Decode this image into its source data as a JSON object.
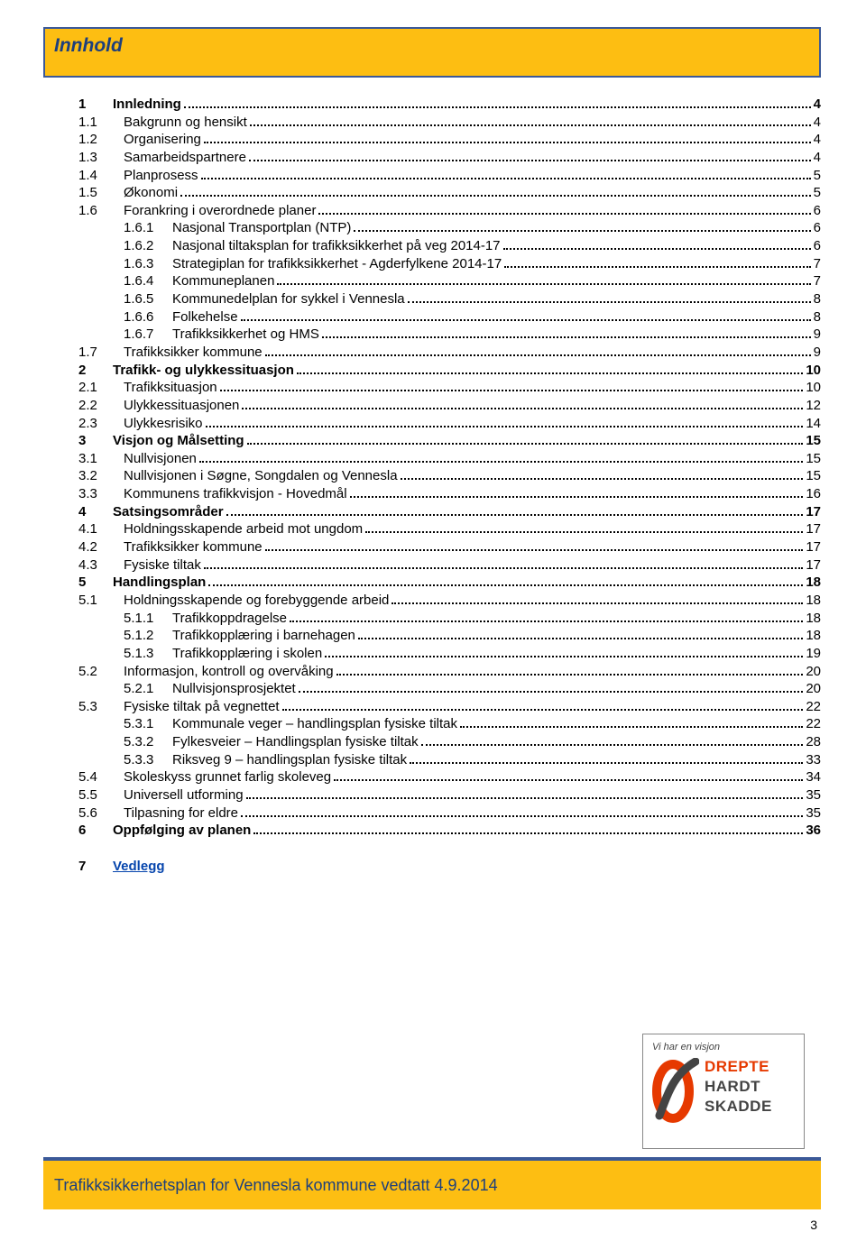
{
  "title": "Innhold",
  "toc": [
    {
      "lvl": 1,
      "num": "1",
      "label": "Innledning",
      "page": "4",
      "bold": true
    },
    {
      "lvl": 2,
      "num": "1.1",
      "label": "Bakgrunn og hensikt",
      "page": "4"
    },
    {
      "lvl": 2,
      "num": "1.2",
      "label": "Organisering",
      "page": "4"
    },
    {
      "lvl": 2,
      "num": "1.3",
      "label": "Samarbeidspartnere",
      "page": "4"
    },
    {
      "lvl": 2,
      "num": "1.4",
      "label": "Planprosess",
      "page": "5"
    },
    {
      "lvl": 2,
      "num": "1.5",
      "label": "Økonomi",
      "page": "5"
    },
    {
      "lvl": 2,
      "num": "1.6",
      "label": "Forankring i overordnede planer",
      "page": "6"
    },
    {
      "lvl": 3,
      "num": "1.6.1",
      "label": "Nasjonal Transportplan (NTP)",
      "page": "6"
    },
    {
      "lvl": 3,
      "num": "1.6.2",
      "label": "Nasjonal tiltaksplan for trafikksikkerhet på veg 2014-17",
      "page": "6"
    },
    {
      "lvl": 3,
      "num": "1.6.3",
      "label": "Strategiplan for trafikksikkerhet - Agderfylkene 2014-17",
      "page": "7"
    },
    {
      "lvl": 3,
      "num": "1.6.4",
      "label": "Kommuneplanen",
      "page": "7"
    },
    {
      "lvl": 3,
      "num": "1.6.5",
      "label": "Kommunedelplan for sykkel i Vennesla",
      "page": "8"
    },
    {
      "lvl": 3,
      "num": "1.6.6",
      "label": "Folkehelse",
      "page": "8"
    },
    {
      "lvl": 3,
      "num": "1.6.7",
      "label": "Trafikksikkerhet og HMS",
      "page": "9"
    },
    {
      "lvl": 2,
      "num": "1.7",
      "label": "Trafikksikker kommune",
      "page": "9"
    },
    {
      "lvl": 1,
      "num": "2",
      "label": "Trafikk- og ulykkessituasjon",
      "page": "10",
      "bold": true
    },
    {
      "lvl": 2,
      "num": "2.1",
      "label": "Trafikksituasjon",
      "page": "10"
    },
    {
      "lvl": 2,
      "num": "2.2",
      "label": "Ulykkessituasjonen",
      "page": "12"
    },
    {
      "lvl": 2,
      "num": "2.3",
      "label": "Ulykkesrisiko",
      "page": "14"
    },
    {
      "lvl": 1,
      "num": "3",
      "label": "Visjon og Målsetting",
      "page": "15",
      "bold": true
    },
    {
      "lvl": 2,
      "num": "3.1",
      "label": "Nullvisjonen",
      "page": "15"
    },
    {
      "lvl": 2,
      "num": "3.2",
      "label": "Nullvisjonen i Søgne, Songdalen og Vennesla",
      "page": "15"
    },
    {
      "lvl": 2,
      "num": "3.3",
      "label": "Kommunens trafikkvisjon - Hovedmål",
      "page": "16"
    },
    {
      "lvl": 1,
      "num": "4",
      "label": "Satsingsområder",
      "page": "17",
      "bold": true
    },
    {
      "lvl": 2,
      "num": "4.1",
      "label": "Holdningsskapende arbeid mot ungdom",
      "page": "17"
    },
    {
      "lvl": 2,
      "num": "4.2",
      "label": "Trafikksikker kommune",
      "page": "17"
    },
    {
      "lvl": 2,
      "num": "4.3",
      "label": "Fysiske tiltak",
      "page": "17"
    },
    {
      "lvl": 1,
      "num": "5",
      "label": "Handlingsplan",
      "page": "18",
      "bold": true
    },
    {
      "lvl": 2,
      "num": "5.1",
      "label": "Holdningsskapende og forebyggende arbeid",
      "page": "18"
    },
    {
      "lvl": 3,
      "num": "5.1.1",
      "label": "Trafikkoppdragelse",
      "page": "18"
    },
    {
      "lvl": 3,
      "num": "5.1.2",
      "label": "Trafikkopplæring i barnehagen",
      "page": "18"
    },
    {
      "lvl": 3,
      "num": "5.1.3",
      "label": "Trafikkopplæring i skolen",
      "page": "19"
    },
    {
      "lvl": 2,
      "num": "5.2",
      "label": "Informasjon, kontroll og overvåking",
      "page": "20"
    },
    {
      "lvl": 3,
      "num": "5.2.1",
      "label": "Nullvisjonsprosjektet",
      "page": "20"
    },
    {
      "lvl": 2,
      "num": "5.3",
      "label": "Fysiske tiltak på vegnettet",
      "page": "22"
    },
    {
      "lvl": 3,
      "num": "5.3.1",
      "label": "Kommunale veger – handlingsplan fysiske tiltak",
      "page": "22"
    },
    {
      "lvl": 3,
      "num": "5.3.2",
      "label": "Fylkesveier – Handlingsplan fysiske tiltak",
      "page": "28"
    },
    {
      "lvl": 3,
      "num": "5.3.3",
      "label": "Riksveg 9 – handlingsplan fysiske tiltak",
      "page": "33"
    },
    {
      "lvl": 2,
      "num": "5.4",
      "label": "Skoleskyss grunnet farlig skoleveg",
      "page": "34"
    },
    {
      "lvl": 2,
      "num": "5.5",
      "label": "Universell utforming",
      "page": "35"
    },
    {
      "lvl": 2,
      "num": "5.6",
      "label": "Tilpasning for eldre",
      "page": "35"
    },
    {
      "lvl": 1,
      "num": "6",
      "label": "Oppfølging av planen",
      "page": "36",
      "bold": true
    }
  ],
  "vedlegg": {
    "num": "7",
    "label": "Vedlegg"
  },
  "logo": {
    "tag": "Vi har en visjon",
    "w1": "DREPTE",
    "w2": "HARDT",
    "w3": "SKADDE"
  },
  "footer": "Trafikksikkerhetsplan for Vennesla kommune vedtatt 4.9.2014",
  "pagenum": "3",
  "colors": {
    "bar_bg": "#fdbe12",
    "bar_border": "#3b5998",
    "title_text": "#1d3f7d",
    "logo_red": "#e63900",
    "logo_gray": "#444444"
  }
}
